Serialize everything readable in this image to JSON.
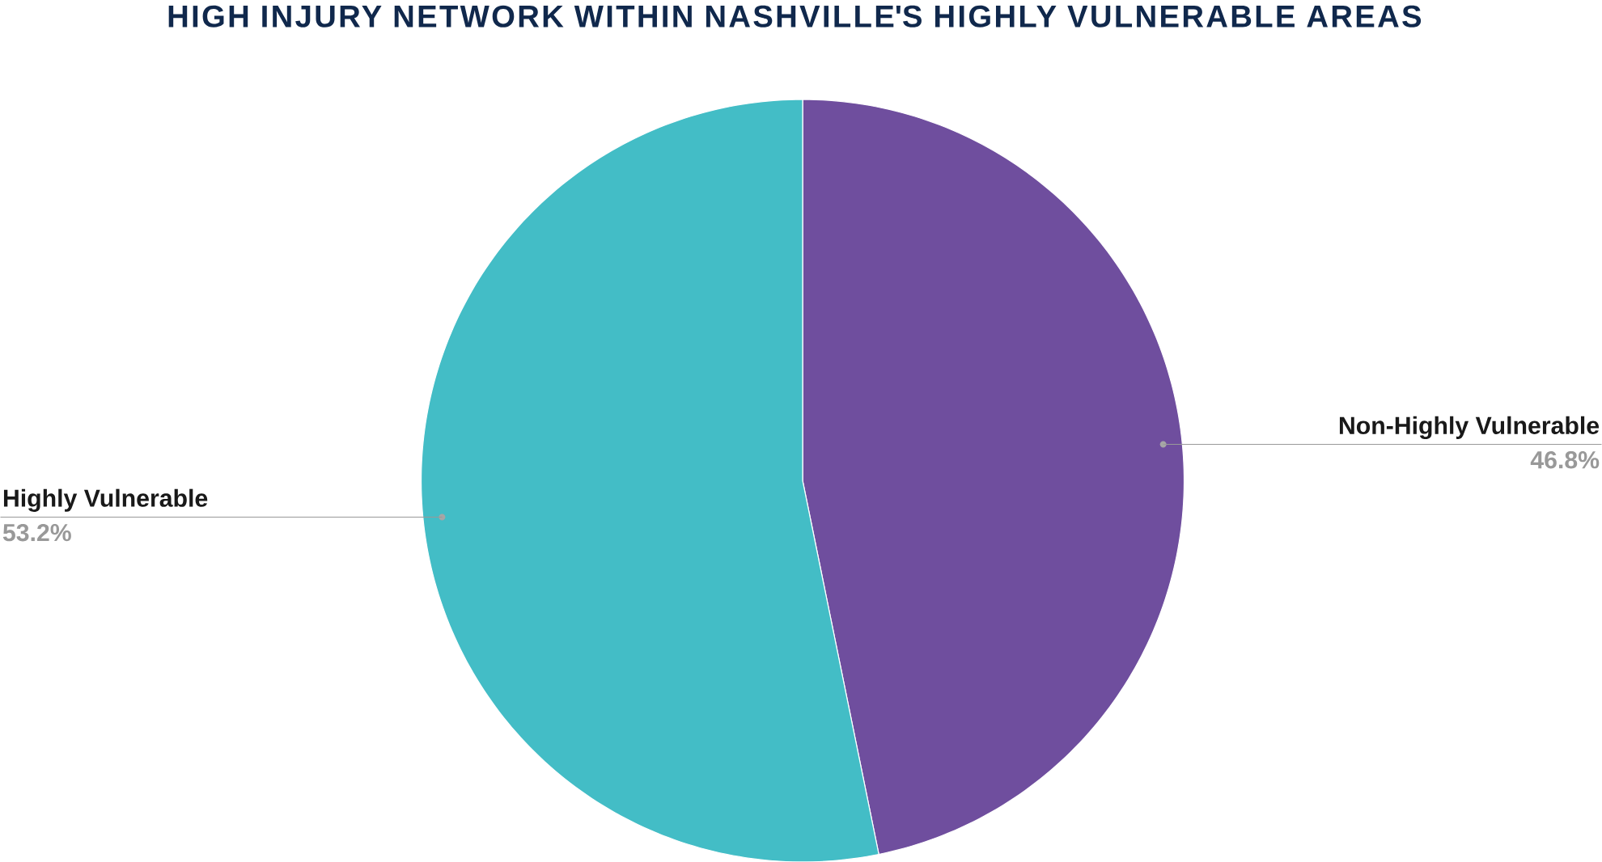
{
  "chart_data": {
    "type": "pie",
    "title": "HIGH INJURY NETWORK WITHIN NASHVILLE'S HIGHLY VULNERABLE AREAS",
    "categories": [
      "Non-Highly Vulnerable",
      "Highly Vulnerable"
    ],
    "values": [
      46.8,
      53.2
    ],
    "colors": [
      "#6f4e9e",
      "#43bdc6"
    ],
    "value_labels": [
      "46.8%",
      "53.2%"
    ]
  }
}
